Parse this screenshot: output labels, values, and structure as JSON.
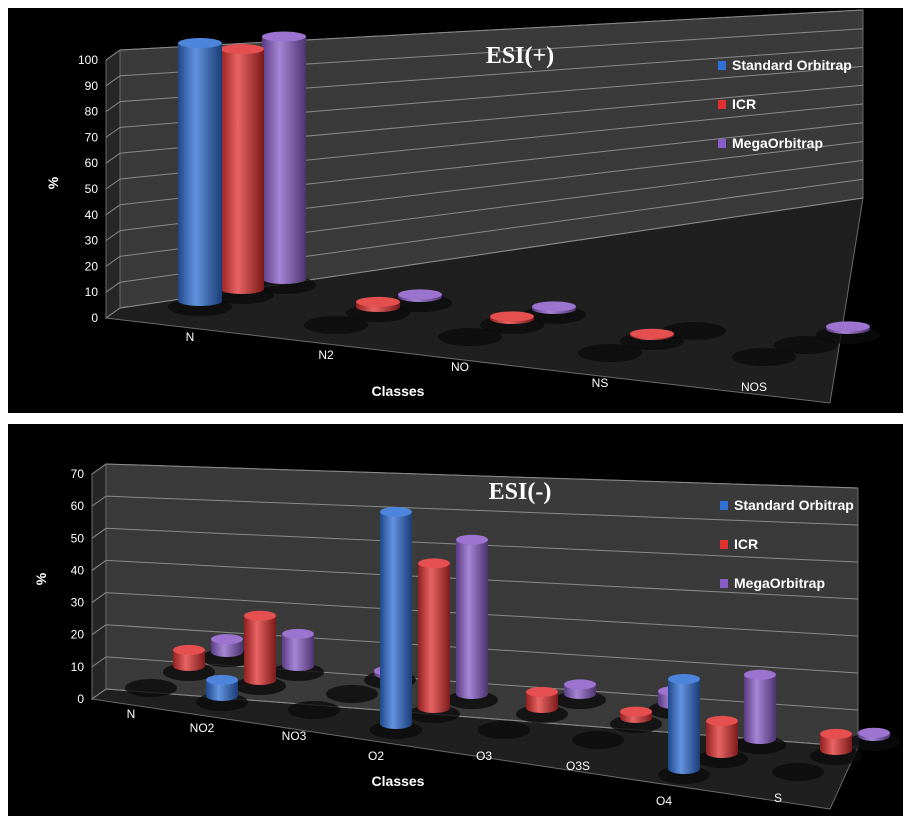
{
  "chart_data": [
    {
      "type": "bar",
      "title": "ESI(+)",
      "xlabel": "Classes",
      "ylabel": "%",
      "ylim": [
        0,
        100
      ],
      "yticks": [
        0,
        10,
        20,
        30,
        40,
        50,
        60,
        70,
        80,
        90,
        100
      ],
      "categories": [
        "N",
        "N2",
        "NO",
        "NS",
        "NOS"
      ],
      "series": [
        {
          "name": "Standard Orbitrap",
          "color": "#2f6fd6",
          "values": [
            100,
            0,
            0,
            0,
            0
          ]
        },
        {
          "name": "ICR",
          "color": "#e03030",
          "values": [
            93,
            2,
            1,
            0.5,
            0
          ]
        },
        {
          "name": "MegaOrbitrap",
          "color": "#8a5cc8",
          "values": [
            94,
            1,
            1,
            0,
            1
          ]
        }
      ],
      "legend_position": "top-right",
      "grid": true
    },
    {
      "type": "bar",
      "title": "ESI(-)",
      "xlabel": "Classes",
      "ylabel": "%",
      "ylim": [
        0,
        70
      ],
      "yticks": [
        0,
        10,
        20,
        30,
        40,
        50,
        60,
        70
      ],
      "categories": [
        "N",
        "NO2",
        "NO3",
        "O2",
        "O3",
        "O3S",
        "O4",
        "S"
      ],
      "series": [
        {
          "name": "Standard Orbitrap",
          "color": "#2f6fd6",
          "values": [
            0,
            5,
            0,
            66,
            0,
            0,
            28,
            0
          ]
        },
        {
          "name": "ICR",
          "color": "#e03030",
          "values": [
            5,
            20,
            0,
            45,
            5,
            2,
            10,
            5
          ]
        },
        {
          "name": "MegaOrbitrap",
          "color": "#8a5cc8",
          "values": [
            4,
            10,
            1,
            48,
            3,
            4,
            20,
            1
          ]
        }
      ],
      "legend_position": "top-right",
      "grid": true
    }
  ]
}
